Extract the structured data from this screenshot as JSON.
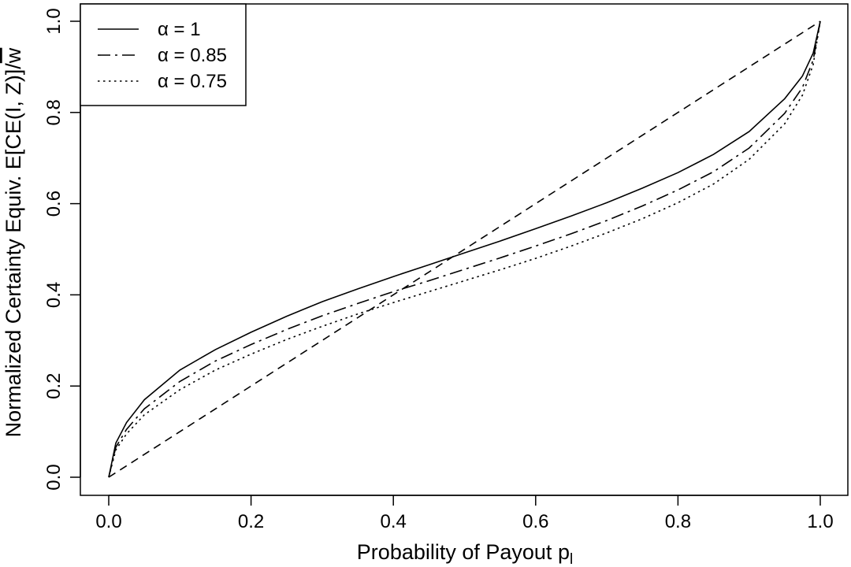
{
  "chart_data": {
    "type": "line",
    "title": "",
    "xlabel": "Probability of Payout p",
    "xlabel_subscript": "l",
    "ylabel": "Normalized Certainty Equiv. E[CE(I, Z)]/",
    "ylabel_suffix": "w",
    "xlim": [
      0,
      1
    ],
    "ylim": [
      0,
      1
    ],
    "x_ticks": [
      "0.0",
      "0.2",
      "0.4",
      "0.6",
      "0.8",
      "1.0"
    ],
    "y_ticks": [
      "0.0",
      "0.2",
      "0.4",
      "0.6",
      "0.8",
      "1.0"
    ],
    "grid": false,
    "legend_position": "top-left",
    "series": [
      {
        "name": "α = 1",
        "line_style": "solid",
        "x": [
          0,
          0.01,
          0.025,
          0.05,
          0.1,
          0.15,
          0.2,
          0.25,
          0.3,
          0.35,
          0.4,
          0.45,
          0.5,
          0.55,
          0.6,
          0.65,
          0.7,
          0.75,
          0.8,
          0.85,
          0.9,
          0.95,
          0.975,
          0.99,
          1.0
        ],
        "y": [
          0,
          0.075,
          0.12,
          0.17,
          0.235,
          0.28,
          0.318,
          0.353,
          0.385,
          0.413,
          0.44,
          0.466,
          0.492,
          0.518,
          0.545,
          0.573,
          0.602,
          0.634,
          0.668,
          0.708,
          0.758,
          0.83,
          0.88,
          0.93,
          1.0
        ]
      },
      {
        "name": "α = 0.85",
        "line_style": "longdash-dot",
        "x": [
          0,
          0.01,
          0.025,
          0.05,
          0.1,
          0.15,
          0.2,
          0.25,
          0.3,
          0.35,
          0.4,
          0.45,
          0.5,
          0.55,
          0.6,
          0.65,
          0.7,
          0.75,
          0.8,
          0.85,
          0.9,
          0.95,
          0.975,
          0.99,
          1.0
        ],
        "y": [
          0,
          0.066,
          0.105,
          0.15,
          0.21,
          0.255,
          0.291,
          0.324,
          0.354,
          0.381,
          0.407,
          0.431,
          0.456,
          0.481,
          0.507,
          0.534,
          0.563,
          0.595,
          0.63,
          0.67,
          0.722,
          0.798,
          0.855,
          0.915,
          1.0
        ]
      },
      {
        "name": "α = 0.75",
        "line_style": "dotted",
        "x": [
          0,
          0.01,
          0.025,
          0.05,
          0.1,
          0.15,
          0.2,
          0.25,
          0.3,
          0.35,
          0.4,
          0.45,
          0.5,
          0.55,
          0.6,
          0.65,
          0.7,
          0.75,
          0.8,
          0.85,
          0.9,
          0.95,
          0.975,
          0.99,
          1.0
        ],
        "y": [
          0,
          0.06,
          0.095,
          0.137,
          0.192,
          0.235,
          0.27,
          0.302,
          0.331,
          0.358,
          0.383,
          0.407,
          0.431,
          0.455,
          0.48,
          0.507,
          0.536,
          0.567,
          0.602,
          0.643,
          0.697,
          0.775,
          0.838,
          0.905,
          1.0
        ]
      },
      {
        "name": "",
        "line_style": "dashed",
        "x": [
          0,
          1
        ],
        "y": [
          0,
          1
        ]
      }
    ]
  }
}
